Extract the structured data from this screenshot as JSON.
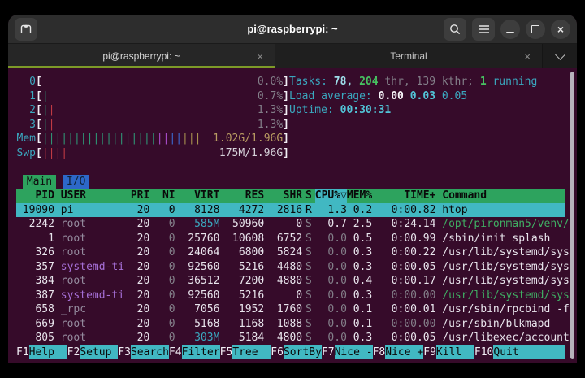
{
  "titlebar": {
    "title": "pi@raspberrypi: ~"
  },
  "tabs": [
    {
      "label": "pi@raspberrypi: ~",
      "active": true
    },
    {
      "label": "Terminal",
      "active": false
    }
  ],
  "icons": {
    "new_tab": "new-tab-icon",
    "search": "search-icon",
    "menu": "menu-icon",
    "minimize": "minimize-icon",
    "maximize": "maximize-icon",
    "close": "close-icon",
    "tab_close_glyph": "×",
    "chevron": "chevron-down-icon"
  },
  "palette": {
    "terminal_bg": "#360b2a",
    "titlebar_bg": "#2d2d2d",
    "tabbar_bg": "#1c1c1c",
    "tab_underline_green": "#7d9a28",
    "header_row_green": "#2da35e",
    "selection_cyan": "#41b8c2",
    "io_tab_blue": "#2d68c8",
    "cyan_text": "#3aa8bf",
    "green_text": "#47c261",
    "gray_text": "#837f89",
    "purple_user_text": "#a56fd6",
    "mem_value_tan": "#b99c62",
    "bar_green": "#2f9474",
    "bar_red": "#c03a43",
    "bar_magenta": "#a94ecb",
    "bar_blue": "#3b6ad1",
    "bar_yellow": "#a8914f"
  },
  "htop": {
    "meters": [
      {
        "label": "0",
        "bars": [],
        "value": "0.0%",
        "vc": "gray"
      },
      {
        "label": "1",
        "bars": [
          {
            "n": 1,
            "c": "g"
          }
        ],
        "value": "0.7%",
        "vc": "gray"
      },
      {
        "label": "2",
        "bars": [
          {
            "n": 1,
            "c": "g"
          },
          {
            "n": 1,
            "c": "r"
          }
        ],
        "value": "1.3%",
        "vc": "gray"
      },
      {
        "label": "3",
        "bars": [
          {
            "n": 1,
            "c": "g"
          },
          {
            "n": 1,
            "c": "r"
          }
        ],
        "value": "1.3%",
        "vc": "gray"
      },
      {
        "label": "Mem",
        "bars": [
          {
            "n": 18,
            "c": "g"
          },
          {
            "n": 2,
            "c": "m"
          },
          {
            "n": 2,
            "c": "b"
          },
          {
            "n": 3,
            "c": "y"
          }
        ],
        "value": "1.02G/1.96G",
        "vc": "tan"
      },
      {
        "label": "Swp",
        "bars": [
          {
            "n": 4,
            "c": "r"
          }
        ],
        "value": "175M/1.96G",
        "vc": "lgray"
      }
    ],
    "right_lines": [
      [
        {
          "t": "Tasks: ",
          "c": "cyan"
        },
        {
          "t": "78, ",
          "c": "bcyan"
        },
        {
          "t": "204",
          "c": "bgreen"
        },
        {
          "t": " thr, 139 kthr; ",
          "c": "gray"
        },
        {
          "t": "1",
          "c": "bgreen"
        },
        {
          "t": " running",
          "c": "cyan"
        }
      ],
      [
        {
          "t": "Load average: ",
          "c": "cyan"
        },
        {
          "t": "0.00 ",
          "c": "bwhite"
        },
        {
          "t": "0.03 ",
          "c": "bcyan2"
        },
        {
          "t": "0.05",
          "c": "cyan"
        }
      ],
      [
        {
          "t": "Uptime: ",
          "c": "cyan"
        },
        {
          "t": "00:30:31",
          "c": "bcyan2"
        }
      ],
      null,
      null,
      null
    ],
    "screen_tabs": [
      {
        "label": "Main",
        "active": true
      },
      {
        "label": "I/O",
        "active": false
      }
    ],
    "table": {
      "columns": {
        "pid": "PID",
        "user": "USER",
        "pri": "PRI",
        "ni": "NI",
        "virt": "VIRT",
        "res": "RES",
        "shr": "SHR",
        "s": "S",
        "cpu": "CPU%▽",
        "mem": "MEM%",
        "time": "TIME+",
        "cmd": "Command"
      },
      "sort_column": "cpu",
      "rows": [
        {
          "pid": "19090",
          "user": "pi",
          "pri": "20",
          "ni": "0",
          "virt": "8128",
          "res": "4272",
          "shr": "2816",
          "s": "R",
          "cpu": "1.3",
          "mem": "0.2",
          "time": "0:00.82",
          "cmd": "htop",
          "selected": true
        },
        {
          "pid": "2242",
          "user": "root",
          "pri": "20",
          "ni": "0",
          "virt": "585M",
          "res": "50960",
          "shr": "0",
          "s": "S",
          "cpu": "0.7",
          "mem": "2.5",
          "time": "0:24.14",
          "cmd": "/opt/pironman5/venv/",
          "hl": {
            "virt": "cyan",
            "cmd": "green"
          }
        },
        {
          "pid": "1",
          "user": "root",
          "pri": "20",
          "ni": "0",
          "virt": "25760",
          "res": "10608",
          "shr": "6752",
          "s": "S",
          "cpu": "0.0",
          "mem": "0.5",
          "time": "0:00.99",
          "cmd": "/sbin/init splash"
        },
        {
          "pid": "326",
          "user": "root",
          "pri": "20",
          "ni": "0",
          "virt": "24064",
          "res": "6800",
          "shr": "5824",
          "s": "S",
          "cpu": "0.0",
          "mem": "0.3",
          "time": "0:00.22",
          "cmd": "/usr/lib/systemd/sys"
        },
        {
          "pid": "357",
          "user": "systemd-ti",
          "pri": "20",
          "ni": "0",
          "virt": "92560",
          "res": "5216",
          "shr": "4480",
          "s": "S",
          "cpu": "0.0",
          "mem": "0.3",
          "time": "0:00.05",
          "cmd": "/usr/lib/systemd/sys",
          "hl": {
            "user": "purple"
          }
        },
        {
          "pid": "384",
          "user": "root",
          "pri": "20",
          "ni": "0",
          "virt": "36512",
          "res": "7200",
          "shr": "4880",
          "s": "S",
          "cpu": "0.0",
          "mem": "0.4",
          "time": "0:00.17",
          "cmd": "/usr/lib/systemd/sys"
        },
        {
          "pid": "387",
          "user": "systemd-ti",
          "pri": "20",
          "ni": "0",
          "virt": "92560",
          "res": "5216",
          "shr": "0",
          "s": "S",
          "cpu": "0.0",
          "mem": "0.3",
          "time": "0:00.00",
          "cmd": "/usr/lib/systemd/sys",
          "hl": {
            "user": "purple",
            "cmd": "green",
            "time": "gray"
          }
        },
        {
          "pid": "658",
          "user": "_rpc",
          "pri": "20",
          "ni": "0",
          "virt": "7056",
          "res": "1952",
          "shr": "1760",
          "s": "S",
          "cpu": "0.0",
          "mem": "0.1",
          "time": "0:00.01",
          "cmd": "/usr/sbin/rpcbind -f"
        },
        {
          "pid": "669",
          "user": "root",
          "pri": "20",
          "ni": "0",
          "virt": "5168",
          "res": "1168",
          "shr": "1088",
          "s": "S",
          "cpu": "0.0",
          "mem": "0.1",
          "time": "0:00.00",
          "cmd": "/usr/sbin/blkmapd",
          "hl": {
            "time": "gray"
          }
        },
        {
          "pid": "805",
          "user": "root",
          "pri": "20",
          "ni": "0",
          "virt": "303M",
          "res": "5184",
          "shr": "4800",
          "s": "S",
          "cpu": "0.0",
          "mem": "0.3",
          "time": "0:00.05",
          "cmd": "/usr/libexec/account",
          "hl": {
            "virt": "cyan"
          }
        }
      ]
    },
    "fnkeys": [
      {
        "key": "F1",
        "label": "Help"
      },
      {
        "key": "F2",
        "label": "Setup"
      },
      {
        "key": "F3",
        "label": "Search"
      },
      {
        "key": "F4",
        "label": "Filter"
      },
      {
        "key": "F5",
        "label": "Tree"
      },
      {
        "key": "F6",
        "label": "SortBy"
      },
      {
        "key": "F7",
        "label": "Nice -"
      },
      {
        "key": "F8",
        "label": "Nice +"
      },
      {
        "key": "F9",
        "label": "Kill"
      },
      {
        "key": "F10",
        "label": "Quit"
      }
    ]
  }
}
